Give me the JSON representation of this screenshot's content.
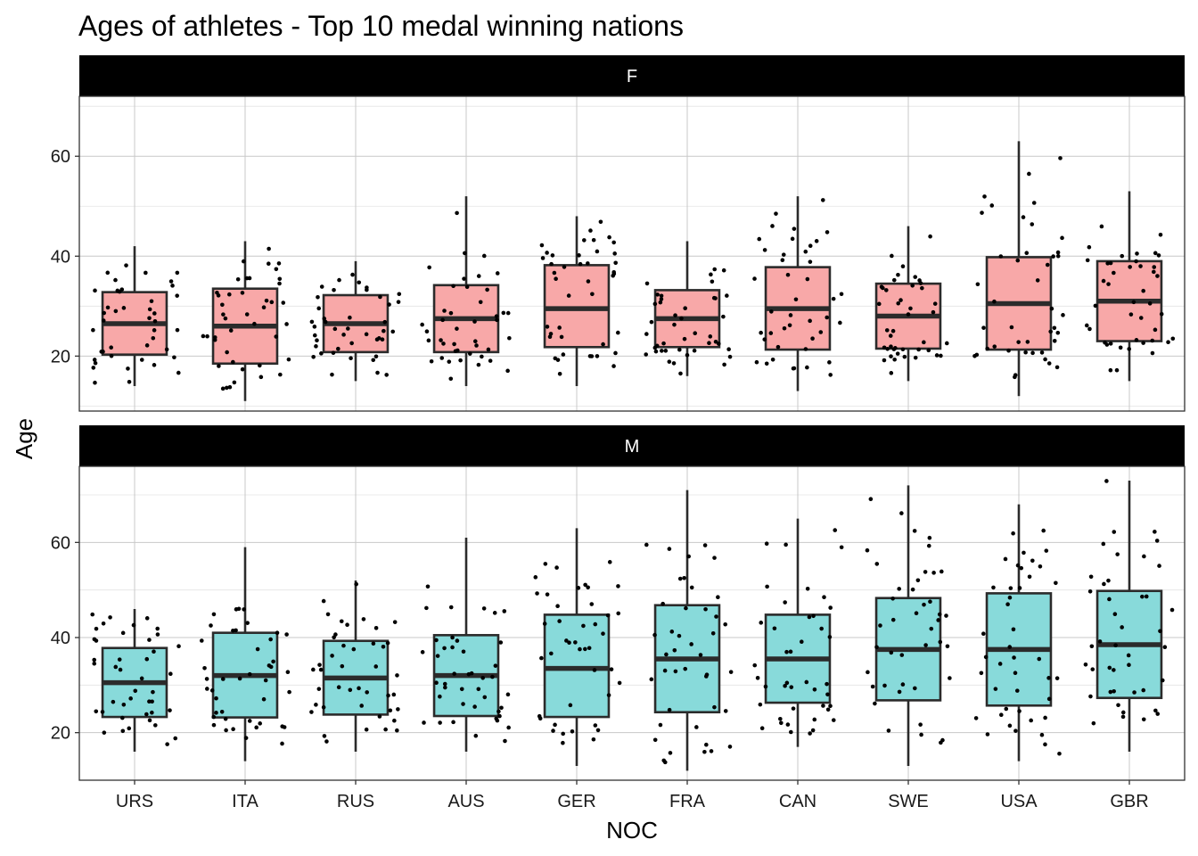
{
  "chart_data": {
    "type": "boxplot",
    "title": "Ages of athletes - Top 10 medal winning nations",
    "xlabel": "NOC",
    "ylabel": "Age",
    "categories": [
      "URS",
      "ITA",
      "RUS",
      "AUS",
      "GER",
      "FRA",
      "CAN",
      "SWE",
      "USA",
      "GBR"
    ],
    "y_ticks": [
      20,
      40,
      60
    ],
    "grid": true,
    "legend": "none",
    "panels": [
      {
        "label": "F",
        "fill": "#F8A8A8",
        "ylim": [
          9,
          72
        ],
        "boxes": [
          {
            "noc": "URS",
            "min": 14,
            "q1": 20.3,
            "median": 26.5,
            "q3": 32.8,
            "max": 42
          },
          {
            "noc": "ITA",
            "min": 11,
            "q1": 18.5,
            "median": 26,
            "q3": 33.5,
            "max": 43
          },
          {
            "noc": "RUS",
            "min": 15,
            "q1": 20.8,
            "median": 26.5,
            "q3": 32.2,
            "max": 39
          },
          {
            "noc": "AUS",
            "min": 14,
            "q1": 20.8,
            "median": 27.5,
            "q3": 34.2,
            "max": 52
          },
          {
            "noc": "GER",
            "min": 14,
            "q1": 21.8,
            "median": 29.5,
            "q3": 38.2,
            "max": 48
          },
          {
            "noc": "FRA",
            "min": 16,
            "q1": 21.8,
            "median": 27.5,
            "q3": 33.2,
            "max": 43
          },
          {
            "noc": "CAN",
            "min": 13,
            "q1": 21.3,
            "median": 29.5,
            "q3": 37.8,
            "max": 52
          },
          {
            "noc": "SWE",
            "min": 15,
            "q1": 21.5,
            "median": 28,
            "q3": 34.5,
            "max": 46
          },
          {
            "noc": "USA",
            "min": 12,
            "q1": 21.3,
            "median": 30.5,
            "q3": 39.8,
            "max": 63
          },
          {
            "noc": "GBR",
            "min": 15,
            "q1": 23,
            "median": 31,
            "q3": 39,
            "max": 53
          }
        ]
      },
      {
        "label": "M",
        "fill": "#88DADA",
        "ylim": [
          10,
          76
        ],
        "boxes": [
          {
            "noc": "URS",
            "min": 16,
            "q1": 23.3,
            "median": 30.5,
            "q3": 37.8,
            "max": 46
          },
          {
            "noc": "ITA",
            "min": 14,
            "q1": 23.2,
            "median": 32,
            "q3": 41,
            "max": 59
          },
          {
            "noc": "RUS",
            "min": 16,
            "q1": 23.8,
            "median": 31.5,
            "q3": 39.3,
            "max": 52
          },
          {
            "noc": "AUS",
            "min": 16,
            "q1": 23.5,
            "median": 32,
            "q3": 40.5,
            "max": 61
          },
          {
            "noc": "GER",
            "min": 13,
            "q1": 23.3,
            "median": 33.5,
            "q3": 44.8,
            "max": 63
          },
          {
            "noc": "FRA",
            "min": 12,
            "q1": 24.3,
            "median": 35.5,
            "q3": 46.8,
            "max": 71
          },
          {
            "noc": "CAN",
            "min": 17,
            "q1": 26.3,
            "median": 35.5,
            "q3": 44.8,
            "max": 65
          },
          {
            "noc": "SWE",
            "min": 13,
            "q1": 26.8,
            "median": 37.5,
            "q3": 48.3,
            "max": 72
          },
          {
            "noc": "USA",
            "min": 14,
            "q1": 25.7,
            "median": 37.5,
            "q3": 49.3,
            "max": 68
          },
          {
            "noc": "GBR",
            "min": 16,
            "q1": 27.3,
            "median": 38.5,
            "q3": 49.8,
            "max": 73
          }
        ]
      }
    ]
  }
}
